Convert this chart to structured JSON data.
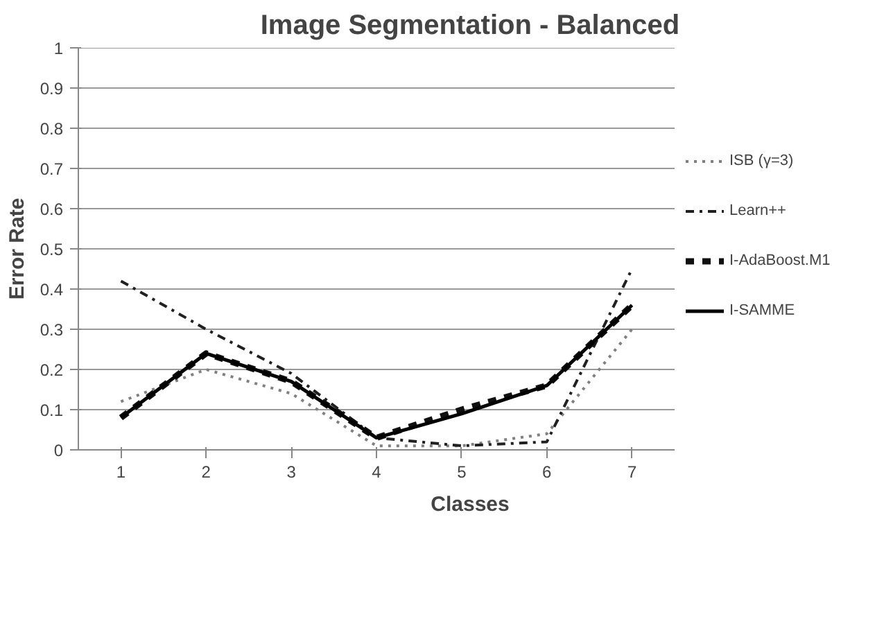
{
  "chart_data": {
    "type": "line",
    "title": "Image Segmentation - Balanced",
    "xlabel": "Classes",
    "ylabel": "Error Rate",
    "categories": [
      "1",
      "2",
      "3",
      "4",
      "5",
      "6",
      "7"
    ],
    "series": [
      {
        "name": "ISB (γ=3)",
        "color": "#808080",
        "line_style": "dotted",
        "values": [
          0.12,
          0.2,
          0.14,
          0.01,
          0.01,
          0.04,
          0.3
        ]
      },
      {
        "name": "Learn++",
        "color": "#202020",
        "line_style": "dashdot",
        "values": [
          0.42,
          0.3,
          0.19,
          0.03,
          0.01,
          0.02,
          0.45
        ]
      },
      {
        "name": "I-AdaBoost.M1",
        "color": "#101010",
        "line_style": "dashed",
        "values": [
          0.08,
          0.24,
          0.17,
          0.03,
          0.1,
          0.16,
          0.36
        ]
      },
      {
        "name": "I-SAMME",
        "color": "#000000",
        "line_style": "solid",
        "values": [
          0.08,
          0.24,
          0.17,
          0.03,
          0.09,
          0.16,
          0.36
        ]
      }
    ],
    "ylim": [
      0,
      1
    ],
    "yticks": [
      0,
      0.1,
      0.2,
      0.3,
      0.4,
      0.5,
      0.6,
      0.7,
      0.8,
      0.9,
      1
    ],
    "grid": "y",
    "legend": "right",
    "marker": "none"
  }
}
